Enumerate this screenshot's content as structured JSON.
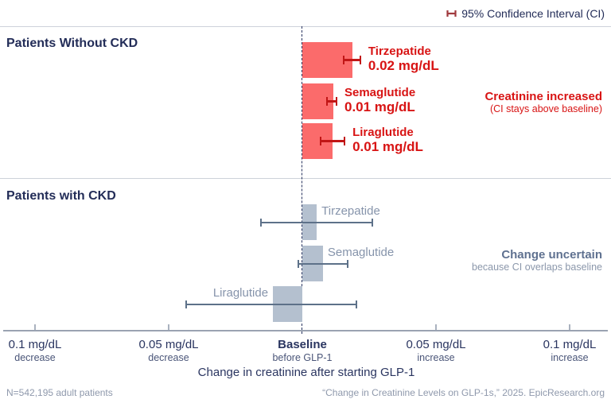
{
  "colors": {
    "background": "#ffffff",
    "navy_text": "#232d58",
    "red_bar": "#fb6b6b",
    "red_whisker": "#c11616",
    "red_text": "#d81414",
    "gray_bar": "#b4c0cf",
    "gray_whisker": "#5d7189",
    "gray_text": "#8694ab",
    "divider": "#cdd2da",
    "axis_line": "#9aa3b2",
    "footer_text": "#8f99ac",
    "legend_icon": "#a03a3e"
  },
  "chart_data": {
    "type": "bar",
    "orientation": "horizontal",
    "unit": "mg/dL",
    "legend": "95% Confidence Interval (CI)",
    "xlabel": "Change in creatinine after starting GLP-1",
    "x_range": [
      -0.113,
      0.115
    ],
    "baseline_value": 0,
    "axis_ticks": [
      {
        "value": -0.1,
        "line1": "0.1 mg/dL",
        "line2": "decrease",
        "bold": false
      },
      {
        "value": -0.05,
        "line1": "0.05 mg/dL",
        "line2": "decrease",
        "bold": false
      },
      {
        "value": 0,
        "line1": "Baseline",
        "line2": "before GLP-1",
        "bold": true
      },
      {
        "value": 0.05,
        "line1": "0.05 mg/dL",
        "line2": "increase",
        "bold": false
      },
      {
        "value": 0.1,
        "line1": "0.1 mg/dL",
        "line2": "increase",
        "bold": false
      }
    ],
    "groups": [
      {
        "title": "Patients Without CKD",
        "theme": "red",
        "annotation": {
          "line1": "Creatinine increased",
          "line2": "(CI stays above baseline)"
        },
        "bars": [
          {
            "label": "Tirzepatide",
            "value_label": "0.02 mg/dL",
            "value": 0.0188,
            "ci": [
              0.0155,
              0.0217
            ]
          },
          {
            "label": "Semaglutide",
            "value_label": "0.01 mg/dL",
            "value": 0.0116,
            "ci": [
              0.0092,
              0.0128
            ]
          },
          {
            "label": "Liraglutide",
            "value_label": "0.01 mg/dL",
            "value": 0.0113,
            "ci": [
              0.0068,
              0.0158
            ]
          }
        ]
      },
      {
        "title": "Patients with CKD",
        "theme": "gray",
        "annotation": {
          "line1": "Change uncertain",
          "line2": "because CI overlaps baseline"
        },
        "bars": [
          {
            "label": "Tirzepatide",
            "value": 0.0054,
            "ci": [
              -0.0155,
              0.0262
            ]
          },
          {
            "label": "Semaglutide",
            "value": 0.0077,
            "ci": [
              -0.0015,
              0.017
            ]
          },
          {
            "label": "Liraglutide",
            "value": -0.011,
            "ci": [
              -0.0434,
              0.0202
            ]
          }
        ]
      }
    ],
    "footer_left": "N=542,195 adult patients",
    "footer_right": "“Change in Creatinine Levels on GLP-1s,” 2025. EpicResearch.org"
  }
}
